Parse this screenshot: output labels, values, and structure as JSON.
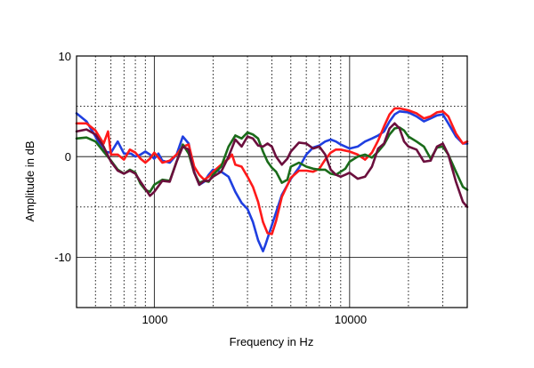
{
  "chart_data": {
    "type": "line",
    "xlabel": "Frequency in Hz",
    "ylabel": "Amplitude in dB",
    "xscale": "log",
    "xlim": [
      400,
      40000
    ],
    "ylim": [
      -15,
      10
    ],
    "x_tick_labels": [
      "1000",
      "10000"
    ],
    "y_tick_labels": [
      "10",
      "0",
      "-10"
    ],
    "grid": true,
    "series": [
      {
        "color": "#1f3fe0",
        "points": [
          [
            400,
            4.3
          ],
          [
            450,
            3.5
          ],
          [
            500,
            2.0
          ],
          [
            550,
            0.5
          ],
          [
            600,
            0.4
          ],
          [
            650,
            1.5
          ],
          [
            700,
            0.3
          ],
          [
            760,
            0.3
          ],
          [
            800,
            0.0
          ],
          [
            850,
            0.2
          ],
          [
            900,
            0.5
          ],
          [
            950,
            0.2
          ],
          [
            1000,
            -0.2
          ],
          [
            1050,
            0.3
          ],
          [
            1100,
            -0.4
          ],
          [
            1200,
            -0.6
          ],
          [
            1300,
            0.2
          ],
          [
            1400,
            2.0
          ],
          [
            1500,
            1.3
          ],
          [
            1600,
            -1.5
          ],
          [
            1700,
            -2.8
          ],
          [
            1800,
            -2.5
          ],
          [
            1900,
            -1.8
          ],
          [
            2000,
            -1.3
          ],
          [
            2200,
            -1.5
          ],
          [
            2400,
            -2.0
          ],
          [
            2600,
            -3.5
          ],
          [
            2800,
            -4.6
          ],
          [
            3000,
            -5.2
          ],
          [
            3200,
            -6.5
          ],
          [
            3400,
            -8.3
          ],
          [
            3600,
            -9.4
          ],
          [
            3700,
            -8.8
          ],
          [
            4000,
            -6.8
          ],
          [
            4500,
            -3.8
          ],
          [
            5000,
            -2.2
          ],
          [
            5500,
            -1.1
          ],
          [
            6000,
            0.2
          ],
          [
            6500,
            0.9
          ],
          [
            7000,
            1.1
          ],
          [
            7500,
            1.5
          ],
          [
            8000,
            1.7
          ],
          [
            8500,
            1.5
          ],
          [
            9000,
            1.2
          ],
          [
            10000,
            0.8
          ],
          [
            11000,
            1.0
          ],
          [
            12000,
            1.5
          ],
          [
            13000,
            1.8
          ],
          [
            14000,
            2.1
          ],
          [
            15000,
            2.5
          ],
          [
            16000,
            3.5
          ],
          [
            17000,
            4.2
          ],
          [
            18000,
            4.5
          ],
          [
            20000,
            4.4
          ],
          [
            22000,
            4.0
          ],
          [
            24000,
            3.5
          ],
          [
            26000,
            3.8
          ],
          [
            28000,
            4.1
          ],
          [
            30000,
            4.2
          ],
          [
            32000,
            3.3
          ],
          [
            35000,
            2.0
          ],
          [
            38000,
            1.3
          ],
          [
            40000,
            1.3
          ]
        ]
      },
      {
        "color": "#ff1a1a",
        "points": [
          [
            400,
            3.3
          ],
          [
            450,
            3.3
          ],
          [
            500,
            2.6
          ],
          [
            550,
            1.3
          ],
          [
            580,
            2.5
          ],
          [
            600,
            0.2
          ],
          [
            650,
            0.2
          ],
          [
            700,
            -0.3
          ],
          [
            750,
            0.7
          ],
          [
            800,
            0.4
          ],
          [
            850,
            -0.2
          ],
          [
            900,
            -0.6
          ],
          [
            950,
            -0.2
          ],
          [
            1000,
            0.4
          ],
          [
            1050,
            -0.1
          ],
          [
            1100,
            -0.6
          ],
          [
            1200,
            -0.4
          ],
          [
            1300,
            0.2
          ],
          [
            1400,
            1.0
          ],
          [
            1500,
            1.2
          ],
          [
            1600,
            -1.0
          ],
          [
            1700,
            -1.8
          ],
          [
            1800,
            -2.3
          ],
          [
            1900,
            -2.0
          ],
          [
            2000,
            -1.5
          ],
          [
            2200,
            -0.8
          ],
          [
            2400,
            -0.2
          ],
          [
            2500,
            0.2
          ],
          [
            2600,
            -0.8
          ],
          [
            2800,
            -1.0
          ],
          [
            3000,
            -2.0
          ],
          [
            3200,
            -3.0
          ],
          [
            3400,
            -4.5
          ],
          [
            3600,
            -6.5
          ],
          [
            3800,
            -7.6
          ],
          [
            4000,
            -7.7
          ],
          [
            4200,
            -6.4
          ],
          [
            4500,
            -4.0
          ],
          [
            5000,
            -2.1
          ],
          [
            5500,
            -1.4
          ],
          [
            6000,
            -1.4
          ],
          [
            6500,
            -1.5
          ],
          [
            7000,
            -1.2
          ],
          [
            7500,
            -0.3
          ],
          [
            8000,
            0.4
          ],
          [
            8500,
            0.7
          ],
          [
            9000,
            0.7
          ],
          [
            10000,
            0.5
          ],
          [
            11000,
            0.2
          ],
          [
            12000,
            -0.3
          ],
          [
            13000,
            0.4
          ],
          [
            14000,
            1.6
          ],
          [
            15000,
            3.0
          ],
          [
            16000,
            4.2
          ],
          [
            17000,
            4.8
          ],
          [
            18000,
            4.8
          ],
          [
            20000,
            4.6
          ],
          [
            22000,
            4.3
          ],
          [
            24000,
            3.8
          ],
          [
            26000,
            4.0
          ],
          [
            28000,
            4.4
          ],
          [
            30000,
            4.5
          ],
          [
            32000,
            4.0
          ],
          [
            35000,
            2.3
          ],
          [
            38000,
            1.3
          ],
          [
            40000,
            1.5
          ]
        ]
      },
      {
        "color": "#1a6b1a",
        "points": [
          [
            400,
            1.8
          ],
          [
            450,
            1.9
          ],
          [
            500,
            1.5
          ],
          [
            550,
            0.5
          ],
          [
            600,
            -0.4
          ],
          [
            650,
            -1.3
          ],
          [
            700,
            -1.7
          ],
          [
            750,
            -1.3
          ],
          [
            800,
            -1.6
          ],
          [
            850,
            -2.7
          ],
          [
            900,
            -3.3
          ],
          [
            950,
            -3.5
          ],
          [
            1000,
            -2.8
          ],
          [
            1100,
            -2.3
          ],
          [
            1200,
            -2.4
          ],
          [
            1300,
            -0.5
          ],
          [
            1400,
            1.2
          ],
          [
            1500,
            0.3
          ],
          [
            1600,
            -1.6
          ],
          [
            1700,
            -2.6
          ],
          [
            1800,
            -2.4
          ],
          [
            1900,
            -2.5
          ],
          [
            2000,
            -1.8
          ],
          [
            2200,
            -1.0
          ],
          [
            2400,
            1.0
          ],
          [
            2600,
            2.1
          ],
          [
            2800,
            1.8
          ],
          [
            3000,
            2.4
          ],
          [
            3200,
            2.2
          ],
          [
            3400,
            1.8
          ],
          [
            3600,
            0.5
          ],
          [
            3800,
            -0.5
          ],
          [
            4000,
            -1.1
          ],
          [
            4200,
            -1.5
          ],
          [
            4500,
            -2.6
          ],
          [
            4800,
            -2.3
          ],
          [
            5000,
            -1.0
          ],
          [
            5500,
            -0.6
          ],
          [
            6000,
            -1.0
          ],
          [
            6500,
            -1.2
          ],
          [
            7000,
            -1.3
          ],
          [
            7500,
            -1.3
          ],
          [
            8000,
            -1.7
          ],
          [
            8500,
            -1.8
          ],
          [
            9000,
            -1.5
          ],
          [
            9500,
            -1.2
          ],
          [
            10000,
            -0.5
          ],
          [
            11000,
            0.0
          ],
          [
            12000,
            0.2
          ],
          [
            13000,
            -0.1
          ],
          [
            14000,
            0.5
          ],
          [
            15000,
            1.2
          ],
          [
            16000,
            2.2
          ],
          [
            17000,
            2.8
          ],
          [
            18000,
            2.9
          ],
          [
            19000,
            2.6
          ],
          [
            20000,
            2.0
          ],
          [
            22000,
            1.5
          ],
          [
            24000,
            1.0
          ],
          [
            26000,
            -0.2
          ],
          [
            28000,
            0.9
          ],
          [
            30000,
            1.0
          ],
          [
            32000,
            0.2
          ],
          [
            35000,
            -1.5
          ],
          [
            38000,
            -3.0
          ],
          [
            40000,
            -3.3
          ]
        ]
      },
      {
        "color": "#6b0f3d",
        "points": [
          [
            400,
            2.5
          ],
          [
            450,
            2.7
          ],
          [
            500,
            2.2
          ],
          [
            550,
            1.0
          ],
          [
            600,
            -0.5
          ],
          [
            650,
            -1.4
          ],
          [
            700,
            -1.7
          ],
          [
            750,
            -1.4
          ],
          [
            800,
            -1.7
          ],
          [
            850,
            -2.5
          ],
          [
            900,
            -3.2
          ],
          [
            950,
            -3.9
          ],
          [
            1000,
            -3.5
          ],
          [
            1100,
            -2.4
          ],
          [
            1200,
            -2.5
          ],
          [
            1300,
            -0.5
          ],
          [
            1400,
            1.0
          ],
          [
            1500,
            0.7
          ],
          [
            1600,
            -1.6
          ],
          [
            1700,
            -2.8
          ],
          [
            1800,
            -2.4
          ],
          [
            1900,
            -2.4
          ],
          [
            2000,
            -2.0
          ],
          [
            2200,
            -1.5
          ],
          [
            2400,
            0.0
          ],
          [
            2600,
            1.7
          ],
          [
            2800,
            1.0
          ],
          [
            3000,
            2.0
          ],
          [
            3200,
            1.8
          ],
          [
            3400,
            1.1
          ],
          [
            3600,
            1.0
          ],
          [
            3800,
            1.3
          ],
          [
            4000,
            1.0
          ],
          [
            4200,
            0.0
          ],
          [
            4500,
            -0.8
          ],
          [
            4800,
            -0.2
          ],
          [
            5000,
            0.5
          ],
          [
            5500,
            1.4
          ],
          [
            6000,
            1.3
          ],
          [
            6500,
            0.8
          ],
          [
            7000,
            1.0
          ],
          [
            7500,
            0.2
          ],
          [
            8000,
            -1.3
          ],
          [
            8500,
            -1.8
          ],
          [
            9000,
            -2.0
          ],
          [
            9500,
            -1.8
          ],
          [
            10000,
            -1.6
          ],
          [
            11000,
            -2.2
          ],
          [
            12000,
            -2.0
          ],
          [
            13000,
            -1.0
          ],
          [
            14000,
            0.8
          ],
          [
            15000,
            1.3
          ],
          [
            16000,
            2.8
          ],
          [
            17000,
            3.3
          ],
          [
            18000,
            2.8
          ],
          [
            19000,
            1.5
          ],
          [
            20000,
            1.0
          ],
          [
            22000,
            0.7
          ],
          [
            24000,
            -0.5
          ],
          [
            26000,
            -0.4
          ],
          [
            28000,
            1.0
          ],
          [
            30000,
            1.3
          ],
          [
            32000,
            0.2
          ],
          [
            35000,
            -2.5
          ],
          [
            38000,
            -4.5
          ],
          [
            40000,
            -5.0
          ]
        ]
      }
    ]
  }
}
